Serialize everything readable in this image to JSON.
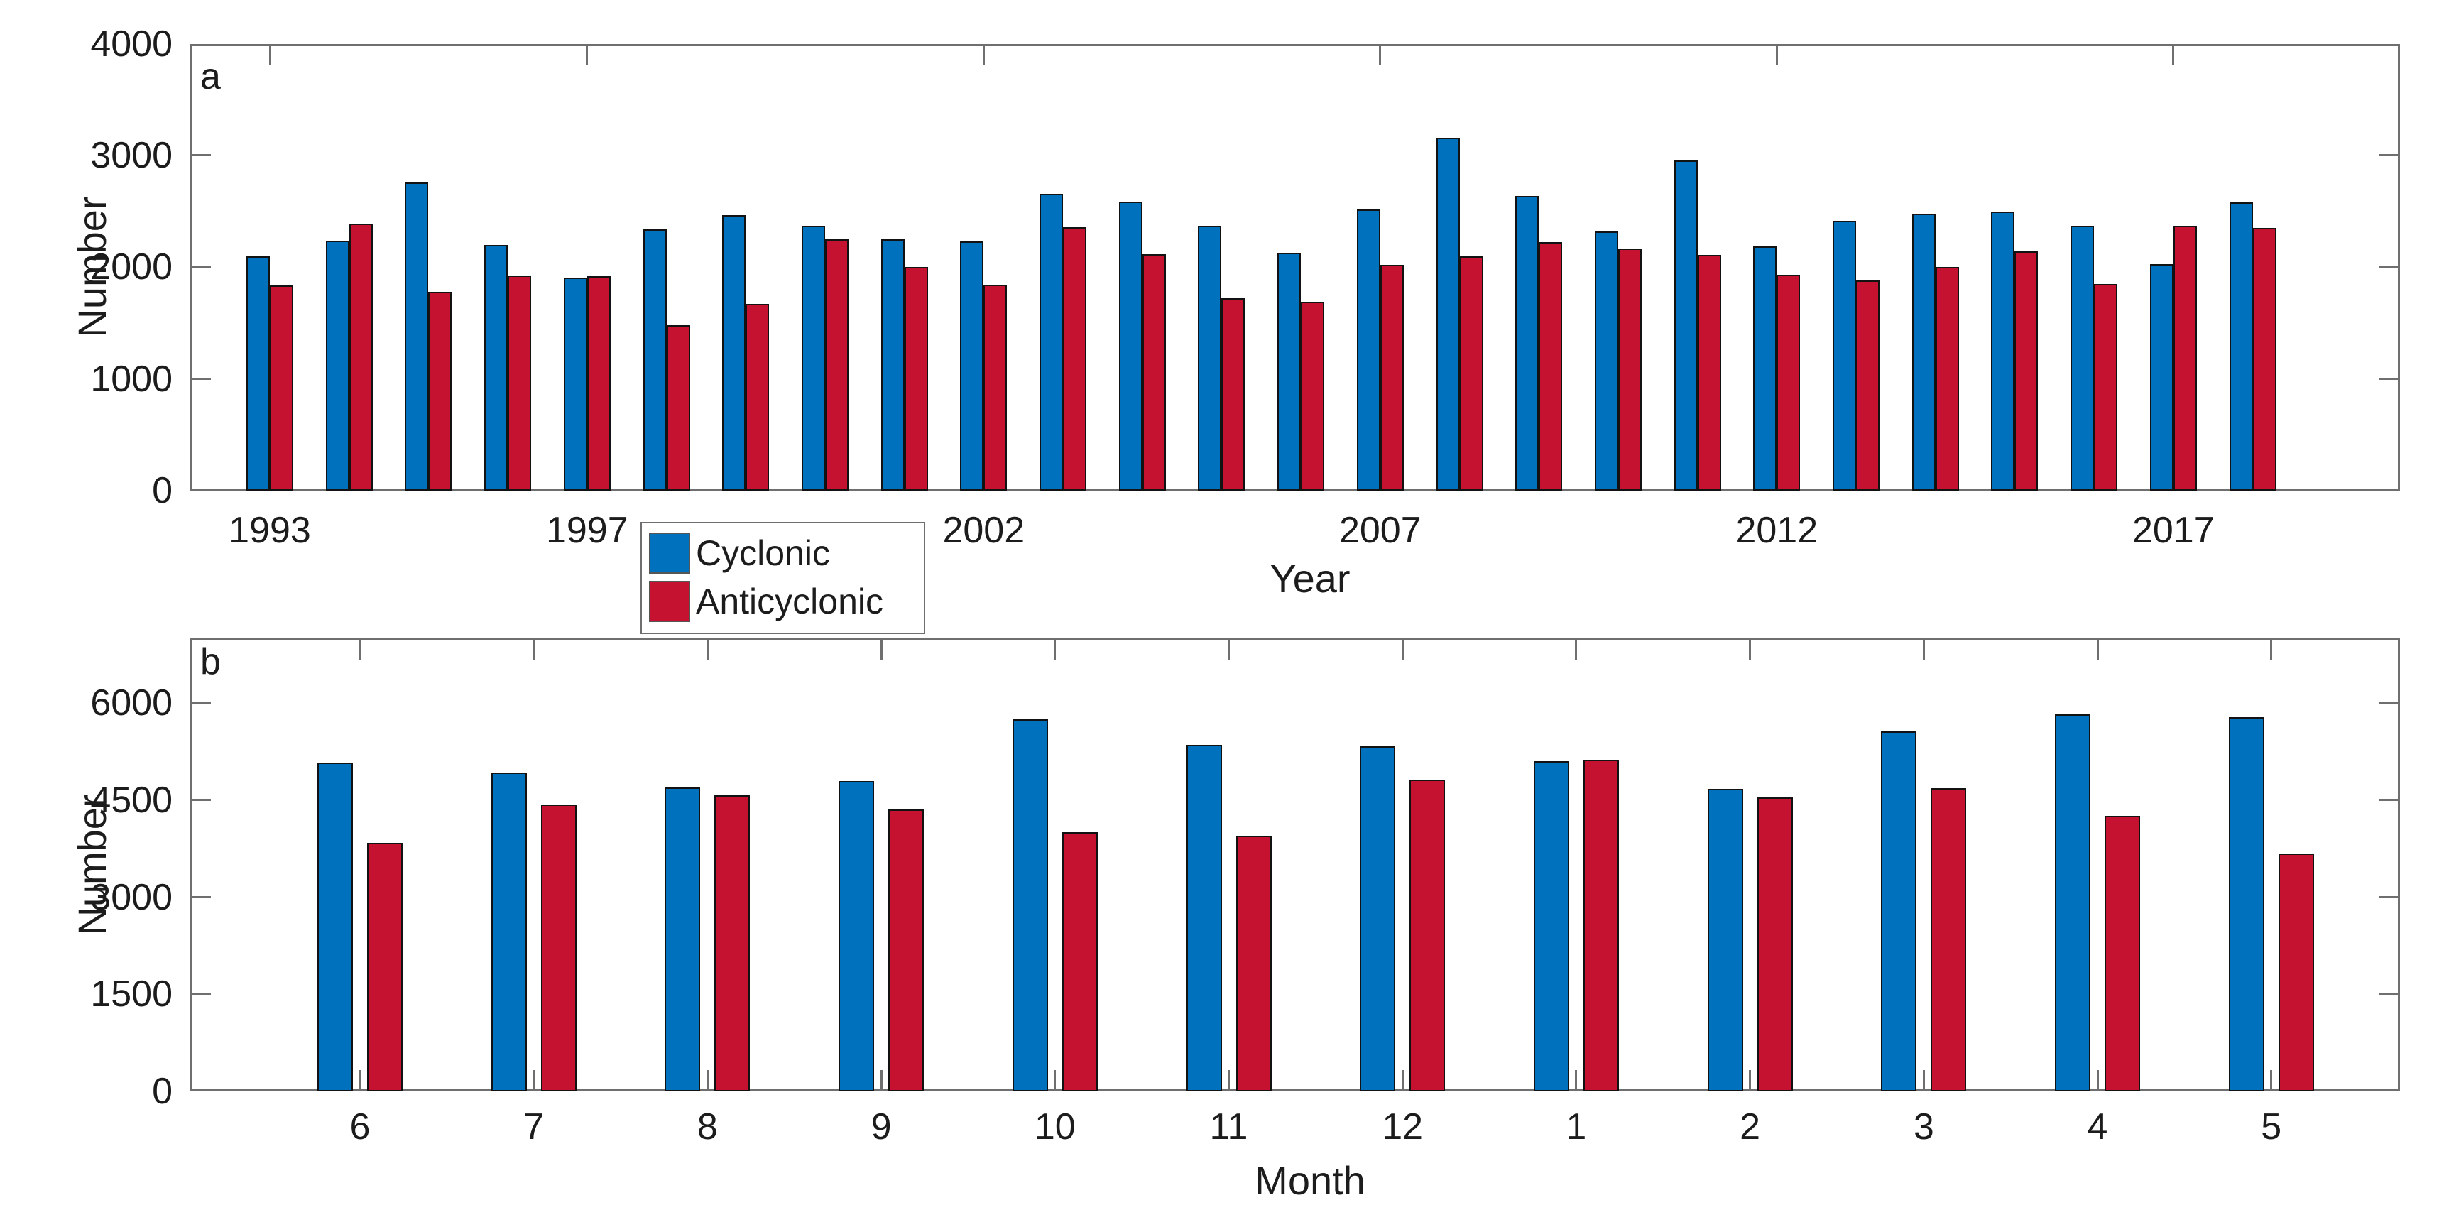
{
  "figure": {
    "background": "#ffffff",
    "axis_color": "#6f6f6f",
    "text_color": "#1c1c1c",
    "cyclonic_color": "#0072BD",
    "anticyclonic_color": "#C41230"
  },
  "legend": {
    "items": [
      {
        "label": "Cyclonic",
        "color": "#0072BD"
      },
      {
        "label": "Anticyclonic",
        "color": "#C41230"
      }
    ]
  },
  "chart_data": [
    {
      "id": "panel-a",
      "panel_letter": "a",
      "type": "bar",
      "xlabel": "Year",
      "ylabel": "Number",
      "categories": [
        1993,
        1994,
        1995,
        1996,
        1997,
        1998,
        1999,
        2000,
        2001,
        2002,
        2003,
        2004,
        2005,
        2006,
        2007,
        2008,
        2009,
        2010,
        2011,
        2012,
        2013,
        2014,
        2015,
        2016,
        2017,
        2018
      ],
      "x_tick_labels": [
        "1993",
        "1997",
        "2002",
        "2007",
        "2012",
        "2017"
      ],
      "ylim": [
        0,
        4000
      ],
      "yticks": [
        0,
        1000,
        2000,
        3000,
        4000
      ],
      "grid": false,
      "series": [
        {
          "name": "Cyclonic",
          "color": "#0072BD",
          "values": [
            2100,
            2240,
            2760,
            2200,
            1910,
            2340,
            2470,
            2370,
            2250,
            2230,
            2660,
            2590,
            2370,
            2130,
            2520,
            3160,
            2640,
            2320,
            2960,
            2185,
            2415,
            2480,
            2500,
            2370,
            2030,
            2580
          ]
        },
        {
          "name": "Anticyclonic",
          "color": "#C41230",
          "values": [
            1840,
            2390,
            1780,
            1930,
            1920,
            1480,
            1670,
            2250,
            2000,
            1845,
            2360,
            2115,
            1725,
            1690,
            2020,
            2100,
            2225,
            2170,
            2110,
            1935,
            1880,
            2000,
            2140,
            1850,
            2370,
            2350
          ]
        }
      ]
    },
    {
      "id": "panel-b",
      "panel_letter": "b",
      "type": "bar",
      "xlabel": "Month",
      "ylabel": "Number",
      "categories": [
        6,
        7,
        8,
        9,
        10,
        11,
        12,
        1,
        2,
        3,
        4,
        5
      ],
      "x_tick_labels": [
        "6",
        "7",
        "8",
        "9",
        "10",
        "11",
        "12",
        "1",
        "2",
        "3",
        "4",
        "5"
      ],
      "ylim": [
        0,
        7000
      ],
      "yticks": [
        0,
        1500,
        3000,
        4500,
        6000
      ],
      "grid": false,
      "series": [
        {
          "name": "Cyclonic",
          "color": "#0072BD",
          "values": [
            5080,
            4930,
            4700,
            4800,
            5750,
            5350,
            5330,
            5100,
            4670,
            5560,
            5830,
            5780
          ]
        },
        {
          "name": "Anticyclonic",
          "color": "#C41230",
          "values": [
            3840,
            4430,
            4580,
            4360,
            4000,
            3950,
            4820,
            5120,
            4540,
            4690,
            4260,
            3680
          ]
        }
      ]
    }
  ]
}
